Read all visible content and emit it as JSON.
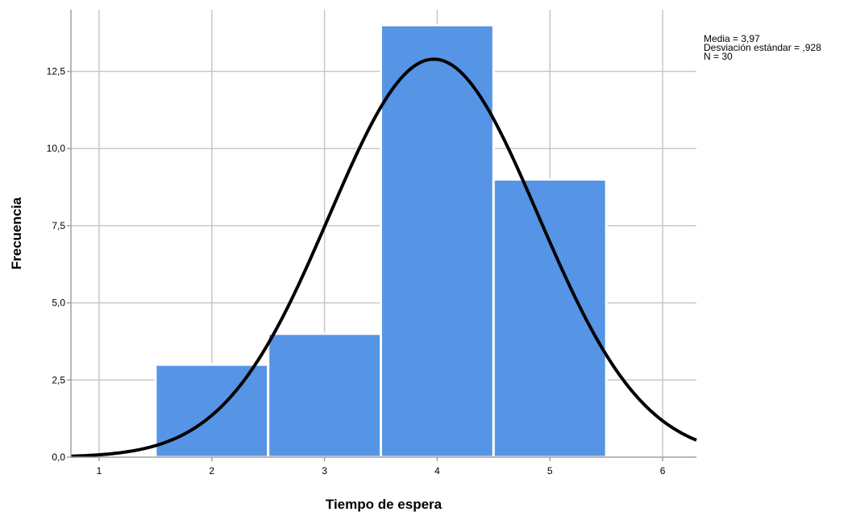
{
  "chart_data": {
    "type": "bar",
    "xlabel": "Tiempo de espera",
    "ylabel": "Frecuencia",
    "xlim": [
      0.75,
      6.3
    ],
    "ylim": [
      0,
      14.5
    ],
    "x_ticks": [
      1,
      2,
      3,
      4,
      5,
      6
    ],
    "x_tick_labels": [
      "1",
      "2",
      "3",
      "4",
      "5",
      "6"
    ],
    "y_ticks": [
      0,
      2.5,
      5,
      7.5,
      10,
      12.5
    ],
    "y_tick_labels": [
      "0,0",
      "2,5",
      "5,0",
      "7,5",
      "10,0",
      "12,5"
    ],
    "bins": [
      {
        "start": 1.5,
        "end": 2.5,
        "count": 3
      },
      {
        "start": 2.5,
        "end": 3.5,
        "count": 4
      },
      {
        "start": 3.5,
        "end": 4.5,
        "count": 14
      },
      {
        "start": 4.5,
        "end": 5.5,
        "count": 9
      }
    ],
    "normal_curve": {
      "mean": 3.97,
      "sd": 0.928,
      "n": 30,
      "bin_width": 1
    },
    "stats_lines": [
      "Media = 3,97",
      "Desviación estándar = ,928",
      "N = 30"
    ],
    "grid": true,
    "colors": {
      "bar": "#5694e5",
      "bar_edge": "#ffffff",
      "curve": "#000000",
      "grid": "#c8c8c8",
      "axis": "#a0a0a0"
    }
  }
}
